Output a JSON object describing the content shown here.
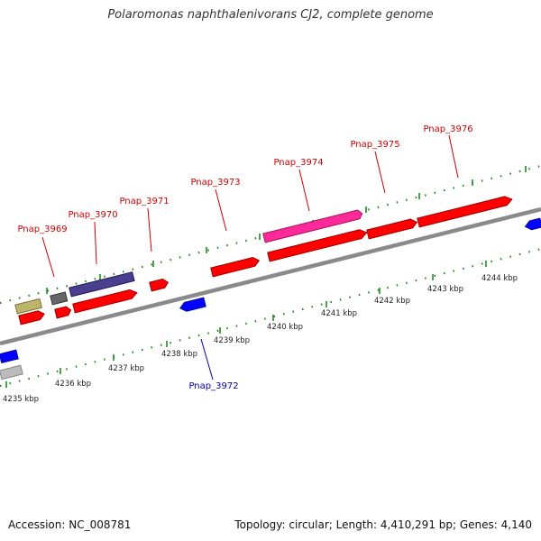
{
  "title": "Polaromonas naphthalenivorans CJ2, complete genome",
  "footer": {
    "accession": "Accession: NC_008781",
    "summary": "Topology: circular; Length: 4,410,291 bp; Genes: 4,140"
  },
  "colors": {
    "background": "#ffffff",
    "backbone": "#8a8a8a",
    "tick": "#1f8a1f",
    "forward_label": "#cc0000",
    "reverse_label": "#0000aa"
  },
  "scale": {
    "unit": "kbp",
    "labels": [
      "4235 kbp",
      "4236 kbp",
      "4237 kbp",
      "4238 kbp",
      "4239 kbp",
      "4240 kbp",
      "4241 kbp",
      "4242 kbp",
      "4243 kbp",
      "4244 kbp"
    ]
  },
  "genes": [
    {
      "label": "Pnap_3969",
      "strand": "forward"
    },
    {
      "label": "Pnap_3970",
      "strand": "forward"
    },
    {
      "label": "Pnap_3971",
      "strand": "forward"
    },
    {
      "label": "Pnap_3972",
      "strand": "reverse"
    },
    {
      "label": "Pnap_3973",
      "strand": "forward"
    },
    {
      "label": "Pnap_3974",
      "strand": "forward"
    },
    {
      "label": "Pnap_3975",
      "strand": "forward"
    },
    {
      "label": "Pnap_3976",
      "strand": "forward"
    }
  ],
  "feature_colors": [
    "#ff0000",
    "#0000ff",
    "#ff2a9a",
    "#4a3f8f",
    "#bdb56b",
    "#666666",
    "#bbbbbb"
  ]
}
